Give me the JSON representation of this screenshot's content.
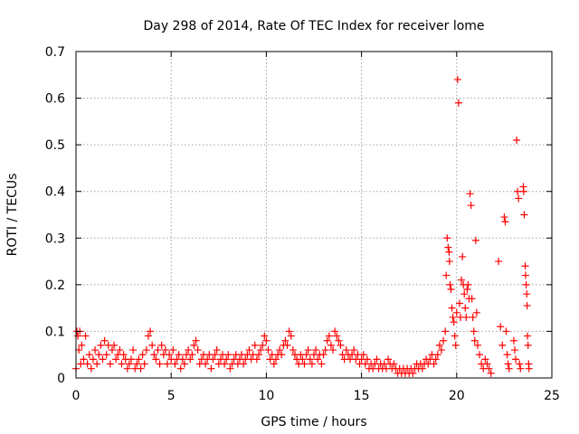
{
  "chart_data": {
    "type": "scatter",
    "title": "Day 298 of 2014, Rate Of TEC Index for receiver lome",
    "xlabel": "GPS time / hours",
    "ylabel": "ROTI / TECUs",
    "xlim": [
      0,
      25
    ],
    "ylim": [
      0,
      0.7
    ],
    "xticks": [
      0,
      5,
      10,
      15,
      20,
      25
    ],
    "yticks": [
      0,
      0.1,
      0.2,
      0.3,
      0.4,
      0.5,
      0.6,
      0.7
    ],
    "xtick_labels": [
      "0",
      "5",
      "10",
      "15",
      "20",
      "25"
    ],
    "ytick_labels": [
      "0",
      "0.1",
      "0.2",
      "0.3",
      "0.4",
      "0.5",
      "0.6",
      "0.7"
    ],
    "grid": true,
    "marker": "+",
    "color": "#ff0000",
    "series": [
      {
        "points": [
          [
            0.0,
            0.02
          ],
          [
            0.05,
            0.1
          ],
          [
            0.1,
            0.09
          ],
          [
            0.15,
            0.06
          ],
          [
            0.2,
            0.1
          ],
          [
            0.25,
            0.03
          ],
          [
            0.3,
            0.07
          ],
          [
            0.4,
            0.04
          ],
          [
            0.5,
            0.09
          ],
          [
            0.6,
            0.03
          ],
          [
            0.7,
            0.05
          ],
          [
            0.8,
            0.02
          ],
          [
            0.9,
            0.04
          ],
          [
            1.0,
            0.06
          ],
          [
            1.1,
            0.03
          ],
          [
            1.2,
            0.05
          ],
          [
            1.3,
            0.07
          ],
          [
            1.4,
            0.04
          ],
          [
            1.5,
            0.08
          ],
          [
            1.6,
            0.05
          ],
          [
            1.7,
            0.07
          ],
          [
            1.8,
            0.03
          ],
          [
            1.9,
            0.06
          ],
          [
            2.0,
            0.07
          ],
          [
            2.1,
            0.04
          ],
          [
            2.2,
            0.05
          ],
          [
            2.3,
            0.06
          ],
          [
            2.4,
            0.03
          ],
          [
            2.5,
            0.05
          ],
          [
            2.6,
            0.04
          ],
          [
            2.7,
            0.02
          ],
          [
            2.8,
            0.03
          ],
          [
            2.9,
            0.04
          ],
          [
            3.0,
            0.06
          ],
          [
            3.1,
            0.02
          ],
          [
            3.2,
            0.03
          ],
          [
            3.3,
            0.04
          ],
          [
            3.4,
            0.02
          ],
          [
            3.5,
            0.05
          ],
          [
            3.6,
            0.03
          ],
          [
            3.7,
            0.06
          ],
          [
            3.8,
            0.09
          ],
          [
            3.9,
            0.1
          ],
          [
            4.0,
            0.07
          ],
          [
            4.1,
            0.05
          ],
          [
            4.2,
            0.04
          ],
          [
            4.3,
            0.06
          ],
          [
            4.4,
            0.03
          ],
          [
            4.5,
            0.07
          ],
          [
            4.6,
            0.05
          ],
          [
            4.7,
            0.06
          ],
          [
            4.8,
            0.03
          ],
          [
            4.9,
            0.05
          ],
          [
            5.0,
            0.04
          ],
          [
            5.1,
            0.06
          ],
          [
            5.2,
            0.03
          ],
          [
            5.3,
            0.04
          ],
          [
            5.4,
            0.05
          ],
          [
            5.5,
            0.02
          ],
          [
            5.6,
            0.04
          ],
          [
            5.7,
            0.03
          ],
          [
            5.8,
            0.05
          ],
          [
            5.9,
            0.06
          ],
          [
            6.0,
            0.04
          ],
          [
            6.1,
            0.05
          ],
          [
            6.2,
            0.07
          ],
          [
            6.3,
            0.08
          ],
          [
            6.4,
            0.06
          ],
          [
            6.5,
            0.03
          ],
          [
            6.6,
            0.04
          ],
          [
            6.7,
            0.05
          ],
          [
            6.8,
            0.03
          ],
          [
            6.9,
            0.04
          ],
          [
            7.0,
            0.05
          ],
          [
            7.1,
            0.02
          ],
          [
            7.2,
            0.04
          ],
          [
            7.3,
            0.05
          ],
          [
            7.4,
            0.06
          ],
          [
            7.5,
            0.03
          ],
          [
            7.6,
            0.04
          ],
          [
            7.7,
            0.05
          ],
          [
            7.8,
            0.03
          ],
          [
            7.9,
            0.04
          ],
          [
            8.0,
            0.05
          ],
          [
            8.1,
            0.02
          ],
          [
            8.2,
            0.03
          ],
          [
            8.3,
            0.04
          ],
          [
            8.4,
            0.05
          ],
          [
            8.5,
            0.03
          ],
          [
            8.6,
            0.04
          ],
          [
            8.7,
            0.05
          ],
          [
            8.8,
            0.03
          ],
          [
            8.9,
            0.04
          ],
          [
            9.0,
            0.05
          ],
          [
            9.1,
            0.06
          ],
          [
            9.2,
            0.04
          ],
          [
            9.3,
            0.05
          ],
          [
            9.4,
            0.07
          ],
          [
            9.5,
            0.04
          ],
          [
            9.6,
            0.05
          ],
          [
            9.7,
            0.06
          ],
          [
            9.8,
            0.07
          ],
          [
            9.9,
            0.09
          ],
          [
            10.0,
            0.08
          ],
          [
            10.1,
            0.06
          ],
          [
            10.2,
            0.04
          ],
          [
            10.3,
            0.05
          ],
          [
            10.4,
            0.03
          ],
          [
            10.5,
            0.04
          ],
          [
            10.6,
            0.05
          ],
          [
            10.7,
            0.06
          ],
          [
            10.8,
            0.05
          ],
          [
            10.9,
            0.07
          ],
          [
            11.0,
            0.08
          ],
          [
            11.1,
            0.07
          ],
          [
            11.2,
            0.1
          ],
          [
            11.3,
            0.09
          ],
          [
            11.4,
            0.06
          ],
          [
            11.5,
            0.05
          ],
          [
            11.6,
            0.04
          ],
          [
            11.7,
            0.03
          ],
          [
            11.8,
            0.05
          ],
          [
            11.9,
            0.04
          ],
          [
            12.0,
            0.03
          ],
          [
            12.1,
            0.05
          ],
          [
            12.2,
            0.06
          ],
          [
            12.3,
            0.04
          ],
          [
            12.4,
            0.03
          ],
          [
            12.5,
            0.05
          ],
          [
            12.6,
            0.06
          ],
          [
            12.7,
            0.04
          ],
          [
            12.8,
            0.05
          ],
          [
            12.9,
            0.03
          ],
          [
            13.0,
            0.05
          ],
          [
            13.1,
            0.06
          ],
          [
            13.2,
            0.08
          ],
          [
            13.3,
            0.09
          ],
          [
            13.4,
            0.07
          ],
          [
            13.5,
            0.06
          ],
          [
            13.6,
            0.1
          ],
          [
            13.7,
            0.09
          ],
          [
            13.8,
            0.08
          ],
          [
            13.9,
            0.07
          ],
          [
            14.0,
            0.05
          ],
          [
            14.1,
            0.04
          ],
          [
            14.2,
            0.06
          ],
          [
            14.3,
            0.05
          ],
          [
            14.4,
            0.04
          ],
          [
            14.5,
            0.05
          ],
          [
            14.6,
            0.06
          ],
          [
            14.7,
            0.04
          ],
          [
            14.8,
            0.05
          ],
          [
            14.9,
            0.03
          ],
          [
            15.0,
            0.04
          ],
          [
            15.1,
            0.05
          ],
          [
            15.2,
            0.03
          ],
          [
            15.3,
            0.04
          ],
          [
            15.4,
            0.02
          ],
          [
            15.5,
            0.03
          ],
          [
            15.6,
            0.02
          ],
          [
            15.7,
            0.03
          ],
          [
            15.8,
            0.04
          ],
          [
            15.9,
            0.02
          ],
          [
            16.0,
            0.03
          ],
          [
            16.1,
            0.02
          ],
          [
            16.2,
            0.03
          ],
          [
            16.3,
            0.02
          ],
          [
            16.4,
            0.04
          ],
          [
            16.5,
            0.03
          ],
          [
            16.6,
            0.02
          ],
          [
            16.7,
            0.03
          ],
          [
            16.8,
            0.02
          ],
          [
            16.9,
            0.01
          ],
          [
            17.0,
            0.02
          ],
          [
            17.1,
            0.01
          ],
          [
            17.2,
            0.02
          ],
          [
            17.3,
            0.01
          ],
          [
            17.4,
            0.02
          ],
          [
            17.5,
            0.01
          ],
          [
            17.6,
            0.02
          ],
          [
            17.7,
            0.01
          ],
          [
            17.8,
            0.02
          ],
          [
            17.9,
            0.03
          ],
          [
            18.0,
            0.02
          ],
          [
            18.1,
            0.03
          ],
          [
            18.2,
            0.02
          ],
          [
            18.3,
            0.03
          ],
          [
            18.4,
            0.04
          ],
          [
            18.5,
            0.03
          ],
          [
            18.6,
            0.04
          ],
          [
            18.7,
            0.05
          ],
          [
            18.8,
            0.03
          ],
          [
            18.9,
            0.04
          ],
          [
            19.0,
            0.05
          ],
          [
            19.1,
            0.07
          ],
          [
            19.2,
            0.06
          ],
          [
            19.3,
            0.08
          ],
          [
            19.4,
            0.1
          ],
          [
            19.45,
            0.22
          ],
          [
            19.5,
            0.3
          ],
          [
            19.55,
            0.28
          ],
          [
            19.6,
            0.27
          ],
          [
            19.62,
            0.25
          ],
          [
            19.65,
            0.2
          ],
          [
            19.7,
            0.19
          ],
          [
            19.75,
            0.15
          ],
          [
            19.8,
            0.13
          ],
          [
            19.85,
            0.12
          ],
          [
            19.9,
            0.09
          ],
          [
            19.95,
            0.07
          ],
          [
            20.0,
            0.14
          ],
          [
            20.05,
            0.64
          ],
          [
            20.1,
            0.59
          ],
          [
            20.15,
            0.16
          ],
          [
            20.2,
            0.13
          ],
          [
            20.25,
            0.21
          ],
          [
            20.3,
            0.26
          ],
          [
            20.35,
            0.2
          ],
          [
            20.4,
            0.18
          ],
          [
            20.45,
            0.15
          ],
          [
            20.5,
            0.13
          ],
          [
            20.55,
            0.19
          ],
          [
            20.6,
            0.2
          ],
          [
            20.65,
            0.17
          ],
          [
            20.7,
            0.395
          ],
          [
            20.75,
            0.37
          ],
          [
            20.8,
            0.17
          ],
          [
            20.85,
            0.13
          ],
          [
            20.9,
            0.1
          ],
          [
            20.95,
            0.08
          ],
          [
            21.0,
            0.295
          ],
          [
            21.05,
            0.14
          ],
          [
            21.1,
            0.07
          ],
          [
            21.2,
            0.05
          ],
          [
            21.3,
            0.03
          ],
          [
            21.4,
            0.02
          ],
          [
            21.5,
            0.04
          ],
          [
            21.6,
            0.03
          ],
          [
            21.7,
            0.02
          ],
          [
            21.8,
            0.01
          ],
          [
            22.2,
            0.25
          ],
          [
            22.3,
            0.11
          ],
          [
            22.4,
            0.07
          ],
          [
            22.5,
            0.345
          ],
          [
            22.55,
            0.335
          ],
          [
            22.6,
            0.1
          ],
          [
            22.65,
            0.05
          ],
          [
            22.7,
            0.03
          ],
          [
            22.75,
            0.02
          ],
          [
            23.0,
            0.08
          ],
          [
            23.05,
            0.06
          ],
          [
            23.1,
            0.04
          ],
          [
            23.15,
            0.51
          ],
          [
            23.2,
            0.4
          ],
          [
            23.25,
            0.385
          ],
          [
            23.3,
            0.03
          ],
          [
            23.35,
            0.02
          ],
          [
            23.5,
            0.41
          ],
          [
            23.52,
            0.4
          ],
          [
            23.55,
            0.35
          ],
          [
            23.6,
            0.24
          ],
          [
            23.62,
            0.22
          ],
          [
            23.65,
            0.2
          ],
          [
            23.68,
            0.18
          ],
          [
            23.7,
            0.155
          ],
          [
            23.72,
            0.09
          ],
          [
            23.75,
            0.07
          ],
          [
            23.78,
            0.03
          ],
          [
            23.8,
            0.02
          ]
        ]
      }
    ]
  }
}
